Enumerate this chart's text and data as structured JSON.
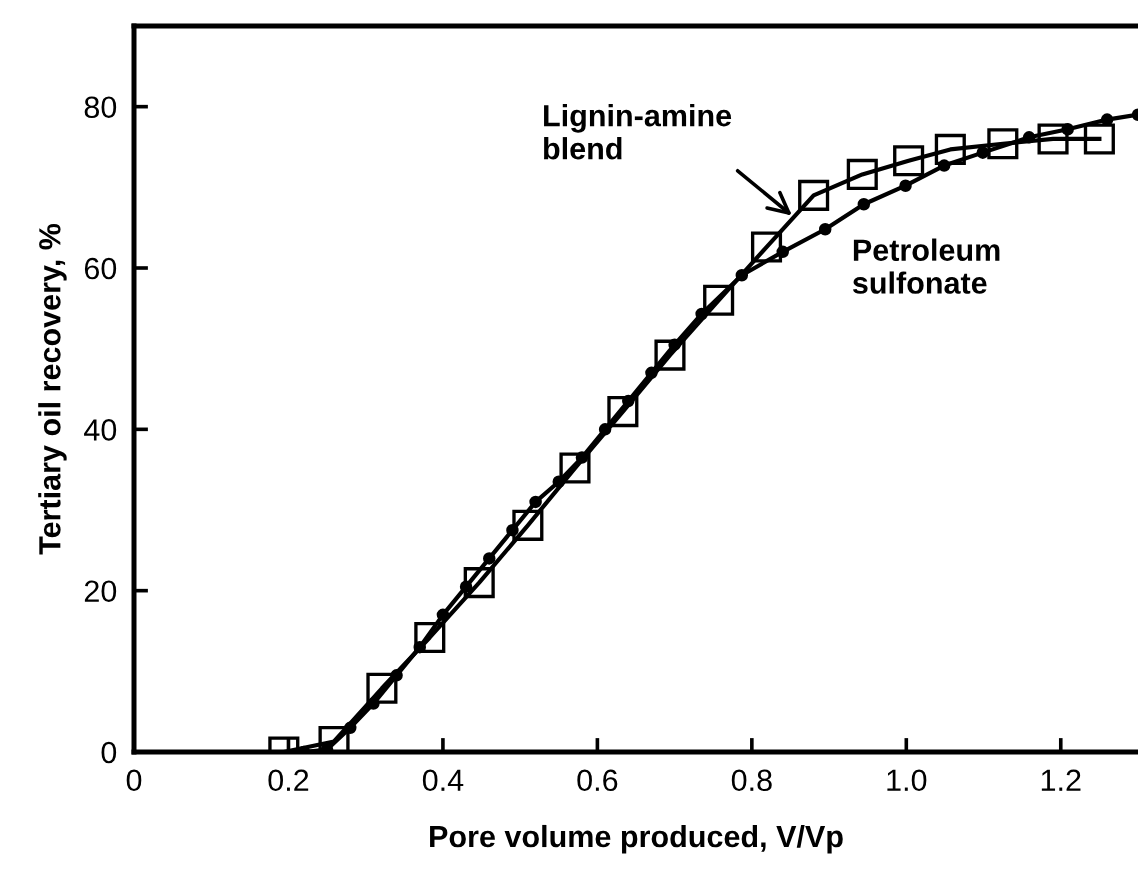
{
  "chart_data": {
    "type": "line",
    "xlabel": "Pore volume produced, V/Vp",
    "ylabel": "Tertiary oil recovery, %",
    "xlim": [
      0,
      1.3
    ],
    "ylim": [
      0,
      90
    ],
    "xticks": [
      {
        "value": 0,
        "label": "0"
      },
      0.2,
      0.4,
      0.6,
      0.8,
      {
        "value": 1.0,
        "label": "1.0"
      },
      1.2
    ],
    "yticks": [
      0,
      20,
      40,
      60,
      80
    ],
    "grid": false,
    "legend": false,
    "series": [
      {
        "color": "#000000",
        "marker": "square",
        "x": [
          0.194,
          0.259,
          0.321,
          0.383,
          0.447,
          0.51,
          0.571,
          0.633,
          0.694,
          0.757,
          0.819,
          0.88,
          0.943,
          1.003,
          1.057,
          1.125,
          1.19,
          1.25
        ],
        "values": [
          0,
          1.3,
          7.9,
          14.2,
          21,
          28.1,
          35.2,
          42.2,
          49.2,
          56,
          62.6,
          69,
          71.6,
          73.3,
          74.7,
          75.4,
          76,
          76
        ]
      },
      {
        "color": "#000000",
        "marker": "circle",
        "x": [
          0.22,
          0.25,
          0.28,
          0.31,
          0.34,
          0.37,
          0.4,
          0.43,
          0.46,
          0.49,
          0.52,
          0.55,
          0.58,
          0.61,
          0.64,
          0.67,
          0.7,
          0.735,
          0.787,
          0.84,
          0.895,
          0.945,
          0.999,
          1.049,
          1.099,
          1.159,
          1.209,
          1.26,
          1.3
        ],
        "values": [
          0,
          0.3,
          3,
          6,
          9.5,
          13,
          17,
          20.5,
          24,
          27.5,
          31,
          33.5,
          36.5,
          40,
          43.5,
          47,
          50.5,
          54.3,
          59.1,
          62,
          64.8,
          67.9,
          70.2,
          72.7,
          74.3,
          76.2,
          77.2,
          78.4,
          79
        ]
      }
    ],
    "annotations": [
      {
        "text": "Lignin-amine\nblend",
        "x": 0.852,
        "y": 66.5
      },
      "Petroleum\nsulfonate"
    ]
  }
}
